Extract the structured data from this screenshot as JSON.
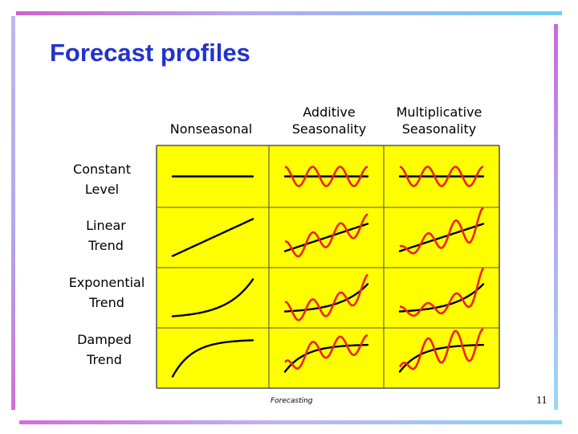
{
  "slide": {
    "title": "Forecast profiles",
    "footer": "Forecasting",
    "page_number": "11"
  },
  "columns": [
    {
      "lines": [
        "Nonseasonal"
      ]
    },
    {
      "lines": [
        "Additive",
        "Seasonality"
      ]
    },
    {
      "lines": [
        "Multiplicative",
        "Seasonality"
      ]
    }
  ],
  "rows": [
    {
      "lines": [
        "Constant",
        "Level"
      ],
      "trend": "constant"
    },
    {
      "lines": [
        "Linear",
        "Trend"
      ],
      "trend": "linear"
    },
    {
      "lines": [
        "Exponential",
        "Trend"
      ],
      "trend": "exponential"
    },
    {
      "lines": [
        "Damped",
        "Trend"
      ],
      "trend": "damped"
    }
  ],
  "colors": {
    "title": "#2233cc",
    "panel_fill": "#ffff00",
    "trend_line": "#000000",
    "seasonal_line": "#ee2222",
    "grid_line": "#555555"
  }
}
